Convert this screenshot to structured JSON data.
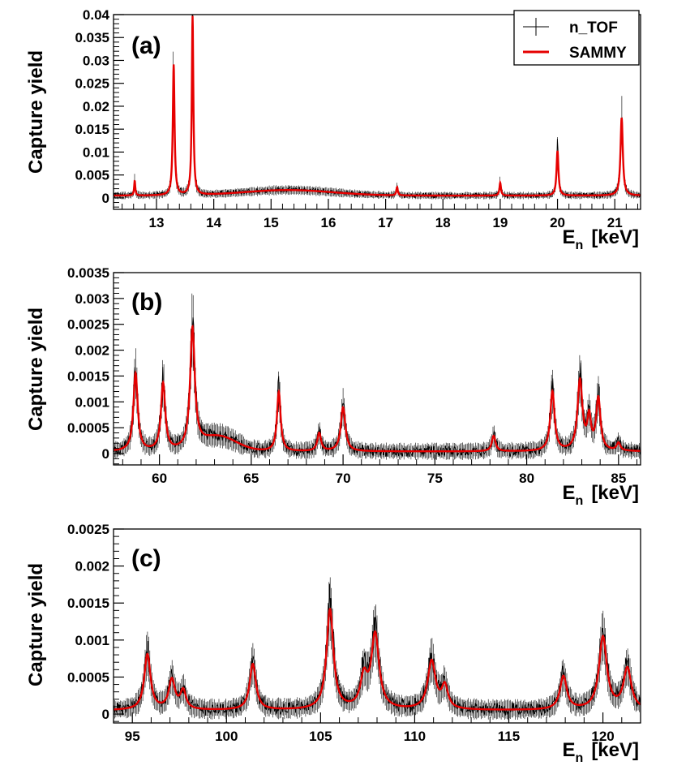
{
  "chart_data": [
    {
      "type": "line",
      "panel_label": "(a)",
      "ylabel": "Capture yield",
      "xlabel_main": "E",
      "xlabel_sub": "n",
      "xlabel_unit": "[keV]",
      "xlim": [
        12.25,
        21.45
      ],
      "ylim": [
        -0.0025,
        0.04
      ],
      "xticks": [
        13,
        14,
        15,
        16,
        17,
        18,
        19,
        20,
        21
      ],
      "yticks": [
        0,
        0.005,
        0.01,
        0.015,
        0.02,
        0.025,
        0.03,
        0.035,
        0.04
      ],
      "ytick_labels": [
        "0",
        "0.005",
        "0.01",
        "0.015",
        "0.02",
        "0.025",
        "0.03",
        "0.035",
        "0.04"
      ],
      "baseline": 0.0005,
      "noise": 0.0006,
      "broad_humps": [
        {
          "center": 15.3,
          "width": 1.1,
          "height": 0.0012
        }
      ],
      "peaks": [
        {
          "x": 12.62,
          "h": 0.0032,
          "w": 0.012
        },
        {
          "x": 13.3,
          "h": 0.0285,
          "w": 0.018
        },
        {
          "x": 13.63,
          "h": 0.039,
          "w": 0.016
        },
        {
          "x": 17.2,
          "h": 0.0018,
          "w": 0.015
        },
        {
          "x": 19.0,
          "h": 0.0028,
          "w": 0.016
        },
        {
          "x": 20.0,
          "h": 0.0098,
          "w": 0.02
        },
        {
          "x": 21.12,
          "h": 0.017,
          "w": 0.024
        }
      ],
      "series": [
        {
          "name": "n_TOF",
          "color": "#000000"
        },
        {
          "name": "SAMMY",
          "color": "#e60000"
        }
      ],
      "legend": {
        "position": "top-right",
        "entries": [
          "n_TOF",
          "SAMMY"
        ]
      }
    },
    {
      "type": "line",
      "panel_label": "(b)",
      "ylabel": "Capture yield",
      "xlabel_main": "E",
      "xlabel_sub": "n",
      "xlabel_unit": "[keV]",
      "xlim": [
        57.5,
        86.2
      ],
      "ylim": [
        -0.00022,
        0.0035
      ],
      "xticks": [
        60,
        65,
        70,
        75,
        80,
        85
      ],
      "yticks": [
        0,
        0.0005,
        0.001,
        0.0015,
        0.002,
        0.0025,
        0.003,
        0.0035
      ],
      "ytick_labels": [
        "0",
        "0.0005",
        "0.001",
        "0.0015",
        "0.002",
        "0.0025",
        "0.003",
        "0.0035"
      ],
      "baseline": 4e-05,
      "noise": 0.00012,
      "broad_humps": [
        {
          "center": 63.2,
          "width": 1.4,
          "height": 0.00028
        }
      ],
      "peaks": [
        {
          "x": 58.7,
          "h": 0.0015,
          "w": 0.14
        },
        {
          "x": 60.2,
          "h": 0.0013,
          "w": 0.14
        },
        {
          "x": 61.8,
          "h": 0.0023,
          "w": 0.15
        },
        {
          "x": 66.5,
          "h": 0.00115,
          "w": 0.12
        },
        {
          "x": 68.7,
          "h": 0.00035,
          "w": 0.12
        },
        {
          "x": 70.0,
          "h": 0.00085,
          "w": 0.15
        },
        {
          "x": 78.2,
          "h": 0.0003,
          "w": 0.12
        },
        {
          "x": 81.4,
          "h": 0.00115,
          "w": 0.14
        },
        {
          "x": 82.9,
          "h": 0.00135,
          "w": 0.16
        },
        {
          "x": 83.4,
          "h": 0.0006,
          "w": 0.12
        },
        {
          "x": 83.9,
          "h": 0.001,
          "w": 0.14
        },
        {
          "x": 85.0,
          "h": 0.00015,
          "w": 0.12
        }
      ],
      "series": [
        {
          "name": "n_TOF",
          "color": "#000000"
        },
        {
          "name": "SAMMY",
          "color": "#e60000"
        }
      ]
    },
    {
      "type": "line",
      "panel_label": "(c)",
      "ylabel": "Capture yield",
      "xlabel_main": "E",
      "xlabel_sub": "n",
      "xlabel_unit": "[keV]",
      "xlim": [
        94.0,
        122.0
      ],
      "ylim": [
        -0.00012,
        0.0025
      ],
      "xticks": [
        95,
        100,
        105,
        110,
        115,
        120
      ],
      "yticks": [
        0,
        0.0005,
        0.001,
        0.0015,
        0.002,
        0.0025
      ],
      "ytick_labels": [
        "0",
        "0.0005",
        "0.001",
        "0.0015",
        "0.002",
        "0.0025"
      ],
      "baseline": 5e-05,
      "noise": 0.0001,
      "broad_humps": [],
      "peaks": [
        {
          "x": 95.8,
          "h": 0.00075,
          "w": 0.2
        },
        {
          "x": 97.1,
          "h": 0.0004,
          "w": 0.2
        },
        {
          "x": 97.7,
          "h": 0.00025,
          "w": 0.18
        },
        {
          "x": 101.4,
          "h": 0.00062,
          "w": 0.2
        },
        {
          "x": 105.5,
          "h": 0.00135,
          "w": 0.22
        },
        {
          "x": 107.3,
          "h": 0.0004,
          "w": 0.22
        },
        {
          "x": 107.9,
          "h": 0.001,
          "w": 0.25
        },
        {
          "x": 110.9,
          "h": 0.00065,
          "w": 0.25
        },
        {
          "x": 111.6,
          "h": 0.0003,
          "w": 0.2
        },
        {
          "x": 117.9,
          "h": 0.00045,
          "w": 0.22
        },
        {
          "x": 120.0,
          "h": 0.00098,
          "w": 0.25
        },
        {
          "x": 121.3,
          "h": 0.00055,
          "w": 0.25
        }
      ],
      "series": [
        {
          "name": "n_TOF",
          "color": "#000000"
        },
        {
          "name": "SAMMY",
          "color": "#e60000"
        }
      ]
    }
  ]
}
